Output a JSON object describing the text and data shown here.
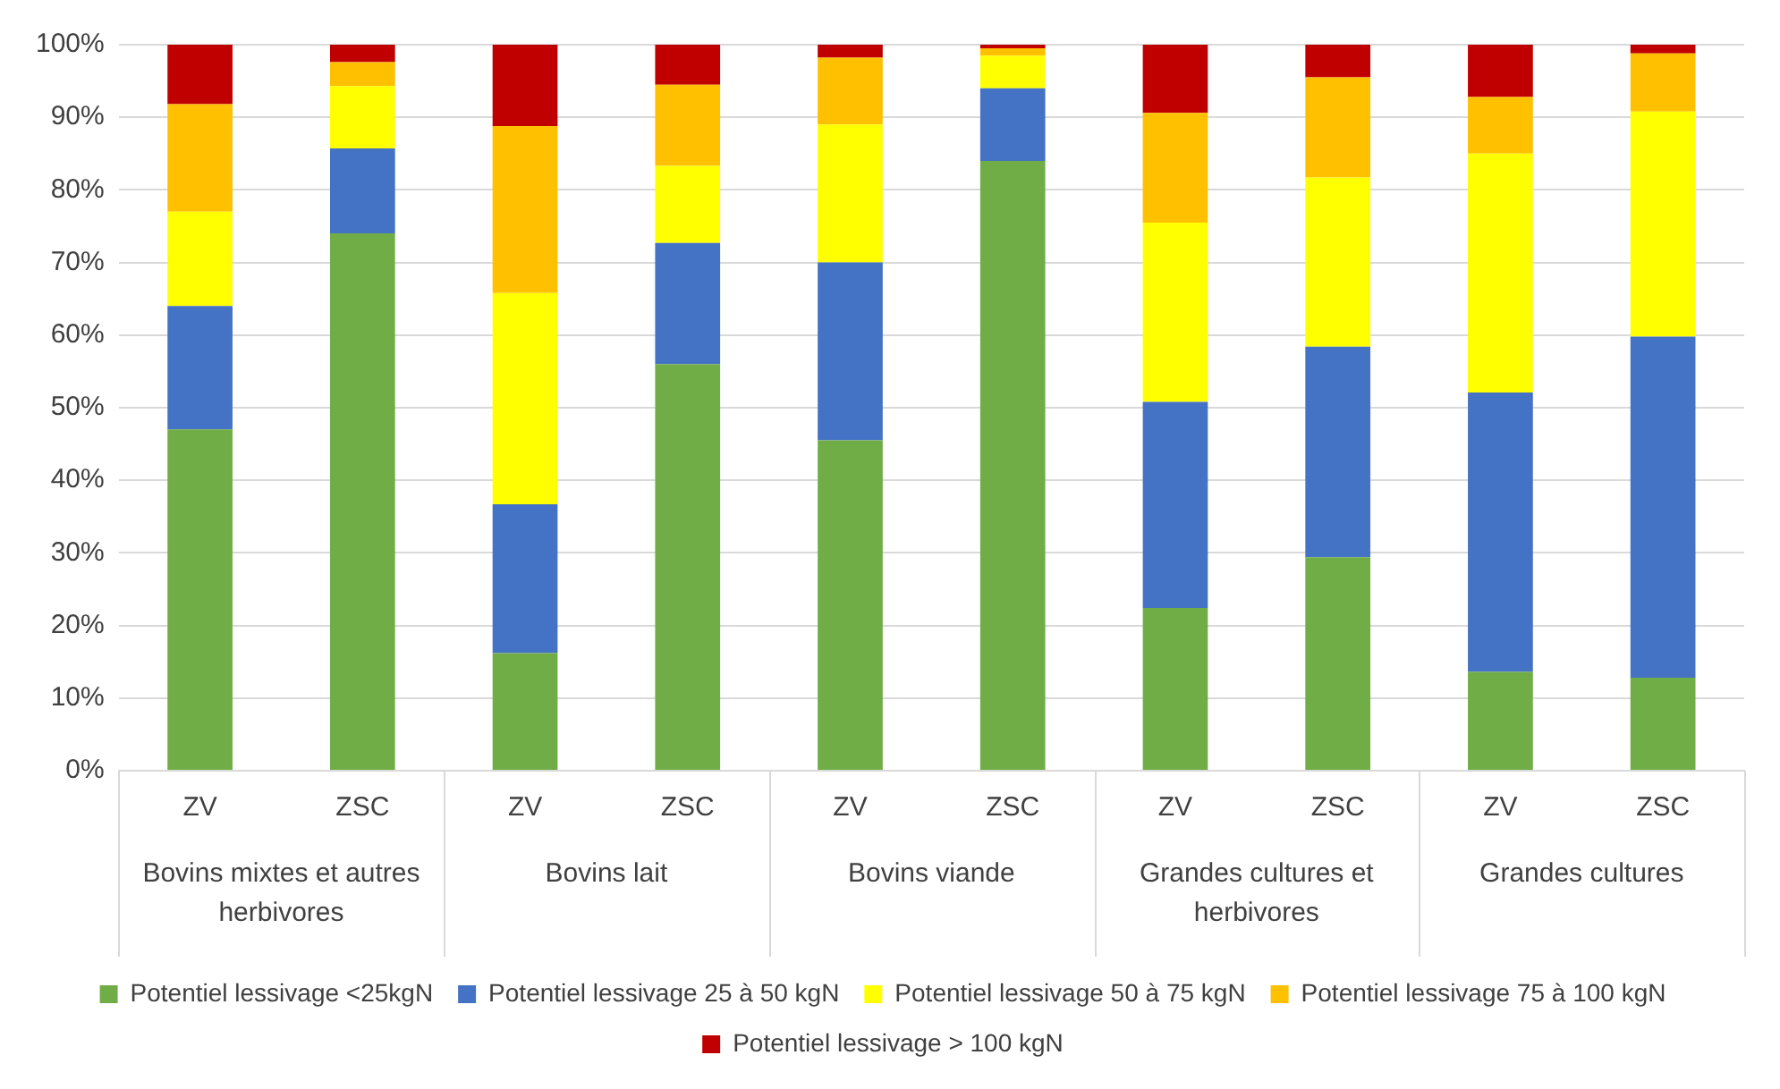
{
  "chart_data": {
    "type": "bar",
    "stacked": true,
    "categories": [
      "ZV",
      "ZSC",
      "ZV",
      "ZSC",
      "ZV",
      "ZSC",
      "ZV",
      "ZSC",
      "ZV",
      "ZSC"
    ],
    "annotations": [
      "Bovins mixtes et autres herbivores",
      "Bovins lait",
      "Bovins viande",
      "Grandes cultures et herbivores",
      "Grandes cultures"
    ],
    "series": [
      {
        "name": "Potentiel lessivage <25kgN",
        "color": "#70ad47",
        "values": [
          47,
          74,
          16.2,
          56,
          45.5,
          84,
          22.4,
          29.4,
          13.6,
          12.8
        ]
      },
      {
        "name": "Potentiel lessivage 25 à 50 kgN",
        "color": "#4472c4",
        "values": [
          17,
          11.7,
          20.5,
          16.7,
          24.5,
          10,
          28.4,
          29,
          38.5,
          47
        ]
      },
      {
        "name": "Potentiel lessivage 50 à 75 kgN",
        "color": "#ffff00",
        "values": [
          13,
          8.6,
          29.1,
          10.6,
          19,
          4.5,
          24.7,
          23.3,
          32.9,
          31
        ]
      },
      {
        "name": "Potentiel lessivage 75 à 100 kgN",
        "color": "#ffc000",
        "values": [
          14.8,
          3.3,
          23,
          11.2,
          9.2,
          1,
          15.1,
          13.8,
          7.8,
          8
        ]
      },
      {
        "name": "Potentiel lessivage > 100 kgN",
        "color": "#c00000",
        "values": [
          8.2,
          2.4,
          11.2,
          5.5,
          1.8,
          0.5,
          9.4,
          4.5,
          7.2,
          1.2
        ]
      }
    ],
    "ylim": [
      0,
      100
    ],
    "yticks": [
      {
        "value": 0,
        "label": "0%"
      },
      {
        "value": 10,
        "label": "10%"
      },
      {
        "value": 20,
        "label": "20%"
      },
      {
        "value": 30,
        "label": "30%"
      },
      {
        "value": 40,
        "label": "40%"
      },
      {
        "value": 50,
        "label": "50%"
      },
      {
        "value": 60,
        "label": "60%"
      },
      {
        "value": 70,
        "label": "70%"
      },
      {
        "value": 80,
        "label": "80%"
      },
      {
        "value": 90,
        "label": "90%"
      },
      {
        "value": 100,
        "label": "100%"
      }
    ],
    "grid": "y",
    "legend": "bottom"
  }
}
